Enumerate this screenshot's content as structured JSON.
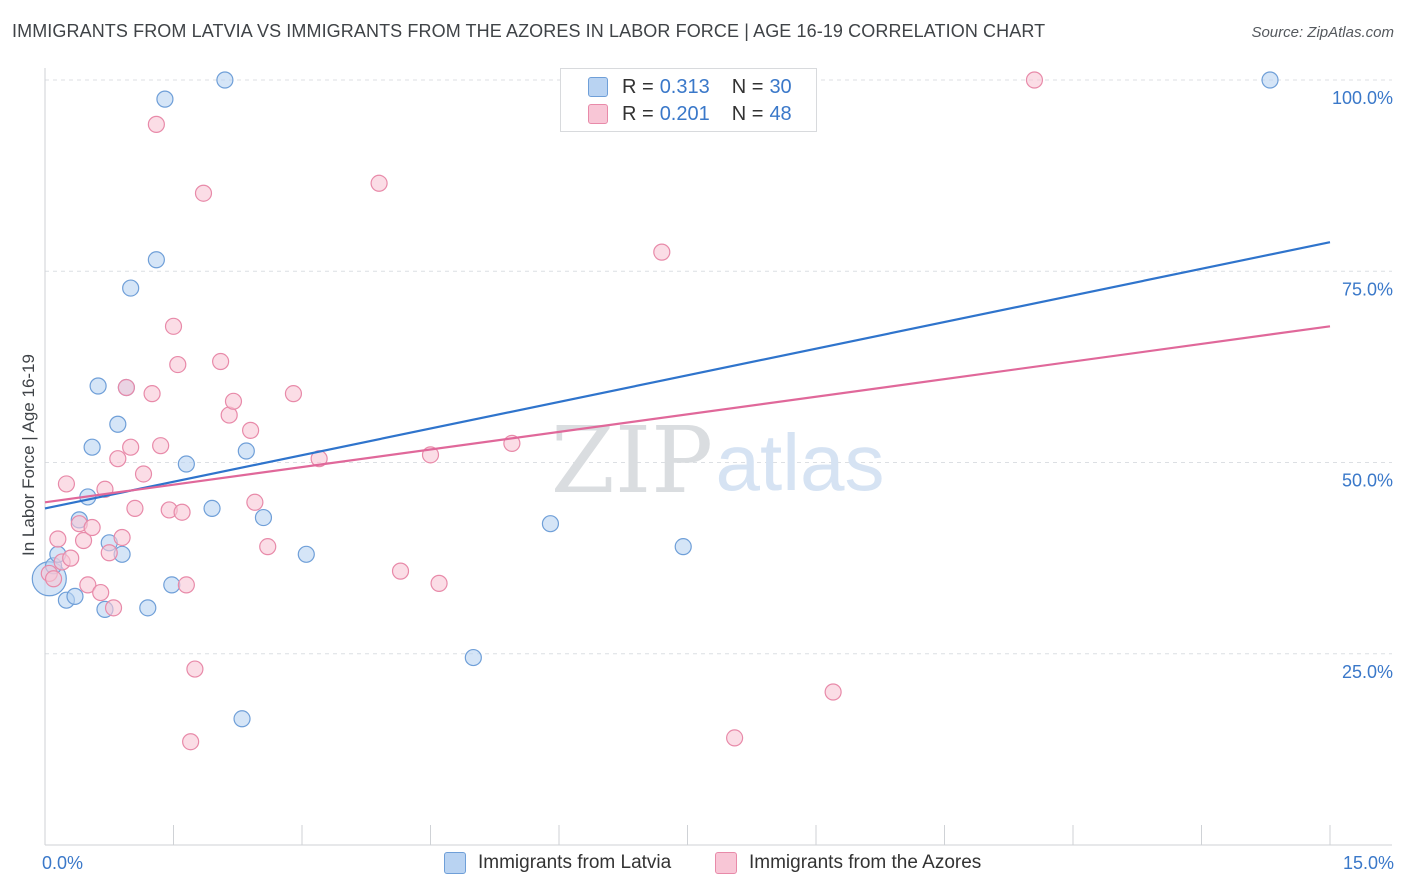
{
  "title": "IMMIGRANTS FROM LATVIA VS IMMIGRANTS FROM THE AZORES IN LABOR FORCE | AGE 16-19 CORRELATION CHART",
  "source": "Source: ZipAtlas.com",
  "watermark": {
    "zip": "ZIP",
    "atlas": "atlas"
  },
  "colors": {
    "latvia_fill": "#b9d3f2",
    "latvia_stroke": "#6f9fd8",
    "latvia_line": "#2f74cc",
    "azores_fill": "#f8c6d6",
    "azores_stroke": "#e88aa9",
    "azores_line": "#e0689a",
    "tick_label": "#3a78c9",
    "grid": "#dcdfe3"
  },
  "legend_top": {
    "latvia": {
      "r_label": "R =",
      "r_value": "0.313",
      "n_label": "N =",
      "n_value": "30"
    },
    "azores": {
      "r_label": "R =",
      "r_value": "0.201",
      "n_label": "N =",
      "n_value": "48"
    }
  },
  "chart_data": {
    "type": "scatter",
    "title": "IMMIGRANTS FROM LATVIA VS IMMIGRANTS FROM THE AZORES IN LABOR FORCE | AGE 16-19 CORRELATION CHART",
    "xlabel": "",
    "ylabel": "In Labor Force | Age 16-19",
    "xlim": [
      0,
      15
    ],
    "ylim": [
      0,
      102
    ],
    "x_tick_labels": [
      {
        "value": 0,
        "label": "0.0%"
      },
      {
        "value": 15,
        "label": "15.0%"
      }
    ],
    "y_tick_labels": [
      {
        "value": 25,
        "label": "25.0%"
      },
      {
        "value": 50,
        "label": "50.0%"
      },
      {
        "value": 75,
        "label": "75.0%"
      },
      {
        "value": 100,
        "label": "100.0%"
      }
    ],
    "grid": true,
    "series": [
      {
        "name": "Immigrants from Latvia",
        "trend": {
          "x": [
            0,
            15
          ],
          "y": [
            44,
            78.8
          ]
        },
        "points": [
          [
            0.05,
            34.8,
            "big"
          ],
          [
            0.1,
            36.5
          ],
          [
            0.15,
            38.0
          ],
          [
            0.25,
            32.0
          ],
          [
            0.35,
            32.5
          ],
          [
            0.4,
            42.5
          ],
          [
            0.5,
            45.5
          ],
          [
            0.55,
            52.0
          ],
          [
            0.62,
            60.0
          ],
          [
            0.7,
            30.8
          ],
          [
            0.75,
            39.5
          ],
          [
            0.85,
            55.0
          ],
          [
            0.9,
            38.0
          ],
          [
            0.95,
            59.8
          ],
          [
            1.0,
            72.8
          ],
          [
            1.2,
            31.0
          ],
          [
            1.3,
            76.5
          ],
          [
            1.4,
            97.5
          ],
          [
            1.48,
            34.0
          ],
          [
            1.65,
            49.8
          ],
          [
            1.95,
            44.0
          ],
          [
            2.1,
            100.0
          ],
          [
            2.3,
            16.5
          ],
          [
            2.35,
            51.5
          ],
          [
            2.55,
            42.8
          ],
          [
            3.05,
            38.0
          ],
          [
            5.0,
            24.5
          ],
          [
            5.9,
            42.0
          ],
          [
            7.45,
            39.0
          ],
          [
            14.3,
            100.0
          ]
        ]
      },
      {
        "name": "Immigrants from the Azores",
        "trend": {
          "x": [
            0,
            15
          ],
          "y": [
            44.8,
            67.8
          ]
        },
        "points": [
          [
            0.05,
            35.5
          ],
          [
            0.1,
            34.8
          ],
          [
            0.15,
            40.0
          ],
          [
            0.2,
            37.0
          ],
          [
            0.25,
            47.2
          ],
          [
            0.3,
            37.5
          ],
          [
            0.4,
            42.0
          ],
          [
            0.45,
            39.8
          ],
          [
            0.5,
            34.0
          ],
          [
            0.55,
            41.5
          ],
          [
            0.65,
            33.0
          ],
          [
            0.7,
            46.5
          ],
          [
            0.75,
            38.2
          ],
          [
            0.8,
            31.0
          ],
          [
            0.85,
            50.5
          ],
          [
            0.9,
            40.2
          ],
          [
            0.95,
            59.8
          ],
          [
            1.0,
            52.0
          ],
          [
            1.05,
            44.0
          ],
          [
            1.15,
            48.5
          ],
          [
            1.25,
            59.0
          ],
          [
            1.3,
            94.2
          ],
          [
            1.35,
            52.2
          ],
          [
            1.45,
            43.8
          ],
          [
            1.5,
            67.8
          ],
          [
            1.55,
            62.8
          ],
          [
            1.6,
            43.5
          ],
          [
            1.65,
            34.0
          ],
          [
            1.7,
            13.5
          ],
          [
            1.75,
            23.0
          ],
          [
            1.85,
            85.2
          ],
          [
            2.05,
            63.2
          ],
          [
            2.15,
            56.2
          ],
          [
            2.2,
            58.0
          ],
          [
            2.4,
            54.2
          ],
          [
            2.45,
            44.8
          ],
          [
            2.6,
            39.0
          ],
          [
            2.9,
            59.0
          ],
          [
            3.2,
            50.5
          ],
          [
            3.9,
            86.5
          ],
          [
            4.15,
            35.8
          ],
          [
            4.5,
            51.0
          ],
          [
            4.6,
            34.2
          ],
          [
            5.45,
            52.5
          ],
          [
            7.2,
            77.5
          ],
          [
            8.05,
            14.0
          ],
          [
            9.2,
            20.0
          ],
          [
            11.55,
            100.0
          ]
        ]
      }
    ]
  },
  "legend_bottom": {
    "latvia": "Immigrants from Latvia",
    "azores": "Immigrants from the Azores"
  }
}
